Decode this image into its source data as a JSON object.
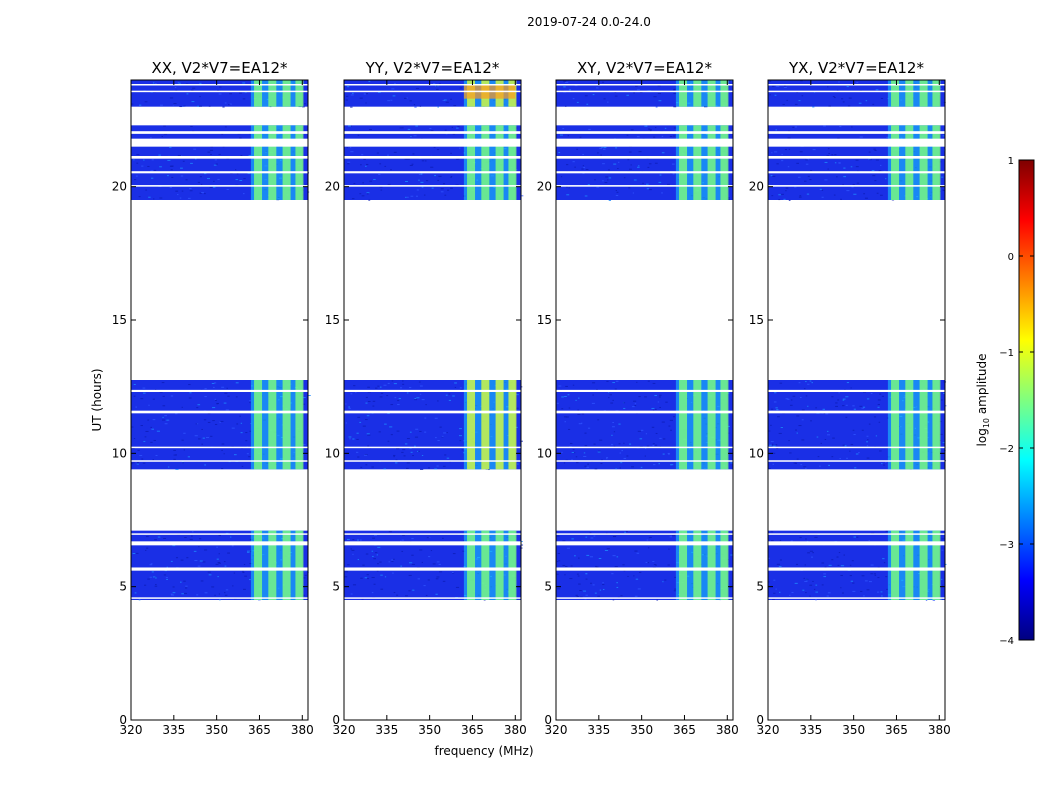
{
  "figure_title": "2019-07-24 0.0-24.0",
  "chart_data": {
    "type": "heatmap",
    "suptitle": "2019-07-24 0.0-24.0",
    "xlabel": "frequency (MHz)",
    "ylabel": "UT (hours)",
    "xlim": [
      320,
      382
    ],
    "ylim": [
      0,
      24
    ],
    "xticks": [
      320,
      335,
      350,
      365,
      380
    ],
    "yticks": [
      0,
      5,
      10,
      15,
      20
    ],
    "panels": [
      {
        "title": "XX, V2*V7=EA12*",
        "hot": false
      },
      {
        "title": "YY, V2*V7=EA12*",
        "hot": true
      },
      {
        "title": "XY, V2*V7=EA12*",
        "hot": false
      },
      {
        "title": "YX, V2*V7=EA12*",
        "hot": false
      }
    ],
    "data_blocks": [
      {
        "t_start": 4.5,
        "t_end": 7.1
      },
      {
        "t_start": 9.4,
        "t_end": 12.75
      },
      {
        "t_start": 19.5,
        "t_end": 22.3
      },
      {
        "t_start": 23.0,
        "t_end": 24.0
      }
    ],
    "white_gaps": [
      [
        4.55,
        4.6
      ],
      [
        5.6,
        5.72
      ],
      [
        6.55,
        6.7
      ],
      [
        6.95,
        7.0
      ],
      [
        9.7,
        9.74
      ],
      [
        10.2,
        10.25
      ],
      [
        11.5,
        11.6
      ],
      [
        12.3,
        12.38
      ],
      [
        20.0,
        20.06
      ],
      [
        20.5,
        20.58
      ],
      [
        21.05,
        21.15
      ],
      [
        21.5,
        21.8
      ],
      [
        21.98,
        22.08
      ],
      [
        23.55,
        23.6
      ],
      [
        23.8,
        23.85
      ]
    ],
    "rfi_band_mhz": [
      362,
      380
    ],
    "rfi_channels_mhz": [
      364.5,
      369.5,
      374.5,
      379.0
    ],
    "colorbar": {
      "label": "log10 amplitude",
      "label_prefix": "log",
      "label_sub": "10",
      "label_suffix": " amplitude",
      "min": -4,
      "max": 1,
      "ticks": [
        "−4",
        "−3",
        "−2",
        "−1",
        "0",
        "1"
      ],
      "tick_values": [
        -4,
        -3,
        -2,
        -1,
        0,
        1
      ],
      "colormap": "jet"
    }
  }
}
